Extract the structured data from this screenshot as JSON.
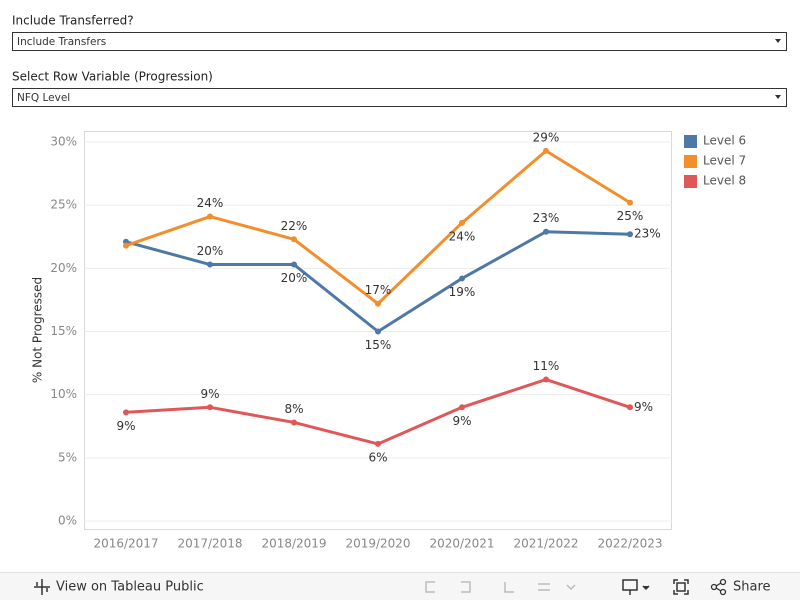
{
  "filters": [
    {
      "label": "Include Transferred?",
      "value": "Include Transfers"
    },
    {
      "label": "Select Row Variable (Progression)",
      "value": "NFQ Level"
    }
  ],
  "chart_data": {
    "type": "line",
    "y_label": "% Not Progressed",
    "categories": [
      "2016/2017",
      "2017/2018",
      "2018/2019",
      "2019/2020",
      "2020/2021",
      "2021/2022",
      "2022/2023"
    ],
    "series": [
      {
        "name": "Level 6",
        "color": "#4e79a7",
        "values": [
          22.1,
          20.3,
          20.3,
          15.0,
          19.2,
          22.9,
          22.7
        ],
        "value_labels": [
          null,
          "20%",
          "20%",
          "15%",
          "19%",
          "23%",
          "23%"
        ]
      },
      {
        "name": "Level 7",
        "color": "#f28e2b",
        "values": [
          21.8,
          24.1,
          22.3,
          17.2,
          23.6,
          29.3,
          25.2
        ],
        "value_labels": [
          null,
          "24%",
          "22%",
          "17%",
          "24%",
          "29%",
          "25%"
        ]
      },
      {
        "name": "Level 8",
        "color": "#e15759",
        "values": [
          8.6,
          9.0,
          7.8,
          6.1,
          9.0,
          11.2,
          9.0
        ],
        "value_labels": [
          "9%",
          "9%",
          "8%",
          "6%",
          "9%",
          "11%",
          "9%"
        ]
      }
    ],
    "ylim": [
      0,
      30
    ],
    "yticks": [
      {
        "value": 0,
        "label": "0%"
      },
      {
        "value": 5,
        "label": "5%"
      },
      {
        "value": 10,
        "label": "10%"
      },
      {
        "value": 15,
        "label": "15%"
      },
      {
        "value": 20,
        "label": "20%"
      },
      {
        "value": 25,
        "label": "25%"
      },
      {
        "value": 30,
        "label": "30%"
      }
    ],
    "grid": true,
    "legend": "right"
  },
  "footer": {
    "link": "View on Tableau Public",
    "share": "Share"
  }
}
